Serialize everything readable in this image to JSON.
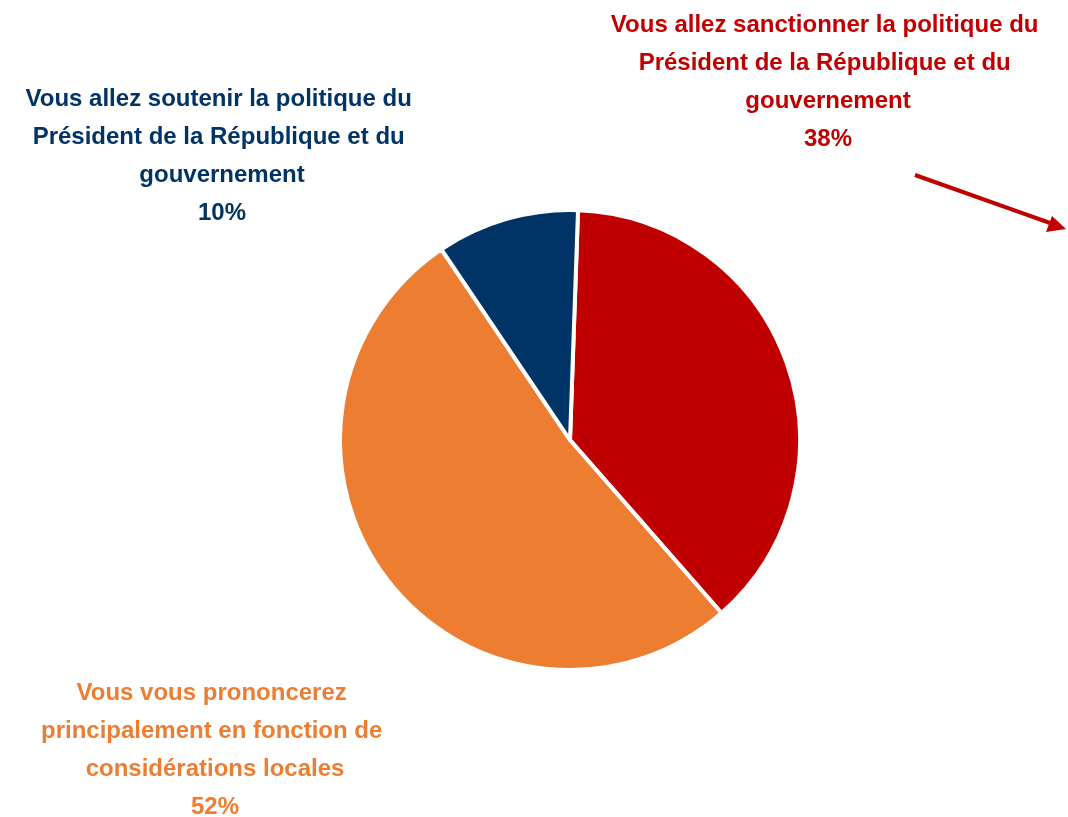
{
  "chart_data": {
    "type": "pie",
    "categories": [
      "Vous allez sanctionner la politique du Président de la République et du gouvernement",
      "Vous vous prononcerez principalement en fonction de considérations locales",
      "Vous allez soutenir la politique du Président de la République et du gouvernement"
    ],
    "values": [
      38,
      52,
      10
    ],
    "value_labels": [
      "38%",
      "52%",
      "10%"
    ],
    "colors": [
      "#c00000",
      "#ed7d31",
      "#003366"
    ]
  }
}
